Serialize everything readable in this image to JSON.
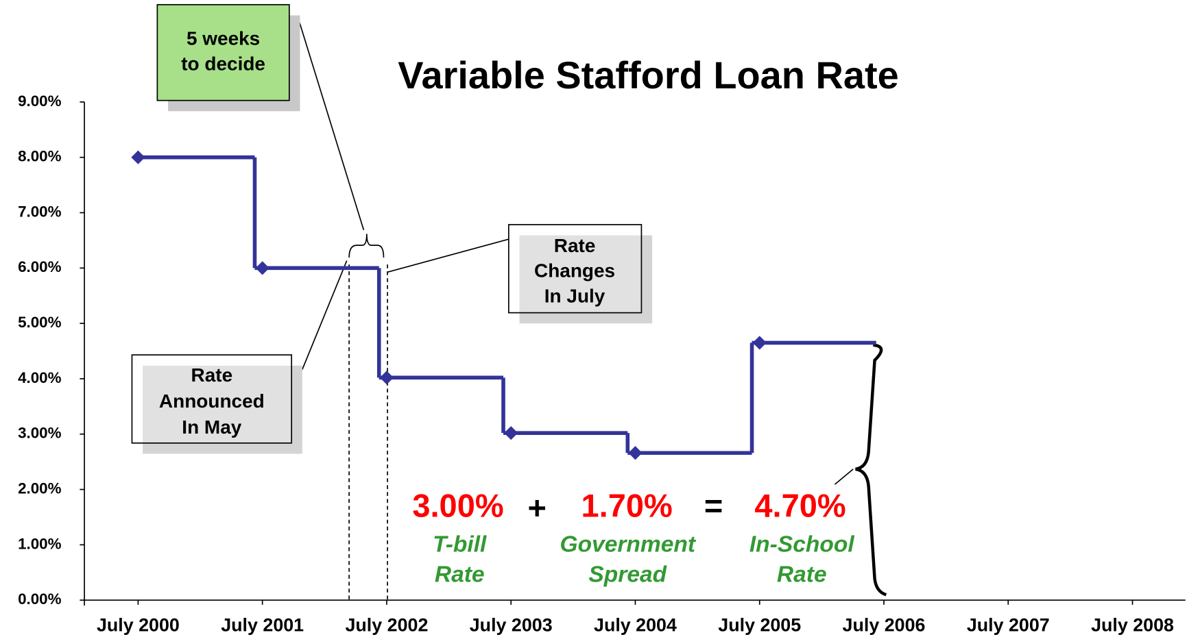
{
  "chart_data": {
    "type": "step",
    "title": "Variable Stafford Loan Rate",
    "categories": [
      "July 2000",
      "July 2001",
      "July 2002",
      "July 2003",
      "July 2004",
      "July 2005",
      "July 2006",
      "July 2007",
      "July 2008"
    ],
    "series": [
      {
        "name": "Variable Stafford Loan Rate",
        "color": "#333399",
        "values": [
          8.0,
          6.0,
          4.02,
          3.02,
          2.66,
          4.65,
          null,
          null,
          null
        ]
      }
    ],
    "ylim": [
      0,
      9
    ],
    "yticks": [
      {
        "value": 0,
        "label": "0.00%"
      },
      {
        "value": 1,
        "label": "1.00%"
      },
      {
        "value": 2,
        "label": "2.00%"
      },
      {
        "value": 3,
        "label": "3.00%"
      },
      {
        "value": 4,
        "label": "4.00%"
      },
      {
        "value": 5,
        "label": "5.00%"
      },
      {
        "value": 6,
        "label": "6.00%"
      },
      {
        "value": 7,
        "label": "7.00%"
      },
      {
        "value": 8,
        "label": "8.00%"
      },
      {
        "value": 9,
        "label": "9.00%"
      }
    ],
    "annotations": [
      {
        "lines": [
          "5 weeks",
          "to decide"
        ]
      },
      {
        "lines": [
          "Rate",
          "Changes",
          "In July"
        ]
      },
      {
        "lines": [
          "Rate",
          "Announced",
          "In May"
        ]
      }
    ],
    "equation": {
      "terms": [
        {
          "value": "3.00%",
          "lines": [
            "T-bill",
            "Rate"
          ]
        },
        {
          "value": "1.70%",
          "lines": [
            "Government",
            "Spread"
          ]
        },
        {
          "value": "4.70%",
          "lines": [
            "In-School",
            "Rate"
          ]
        }
      ],
      "operators": [
        "+",
        "="
      ]
    }
  }
}
